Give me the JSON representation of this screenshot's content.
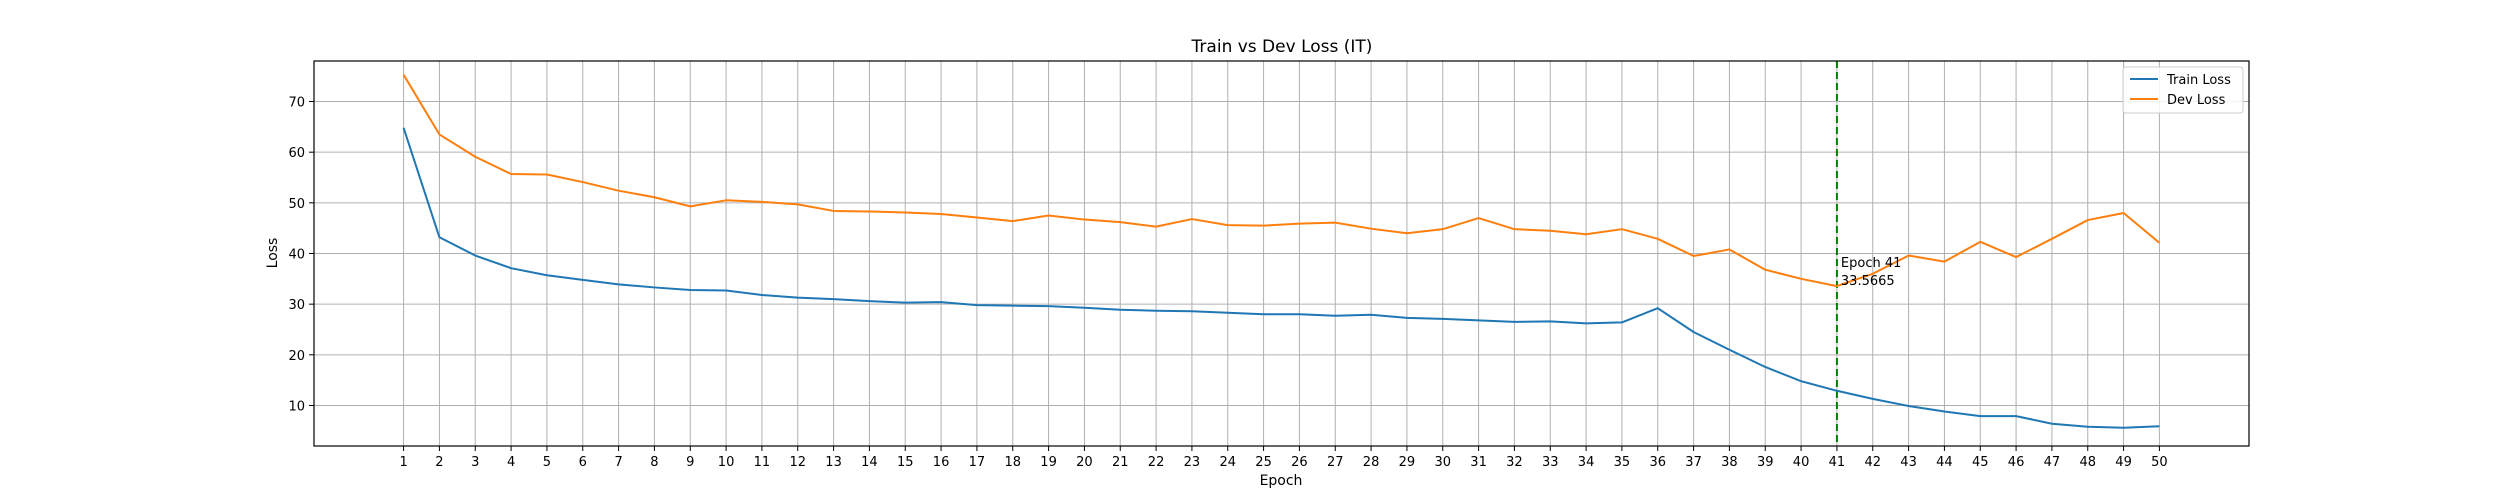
{
  "chart_data": {
    "type": "line",
    "title": "Train vs Dev Loss (IT)",
    "xlabel": "Epoch",
    "ylabel": "Loss",
    "xlim": [
      -1.5,
      52.5
    ],
    "ylim": [
      2.0,
      78.0
    ],
    "grid": true,
    "legend_position": "top-right",
    "x": [
      1,
      2,
      3,
      4,
      5,
      6,
      7,
      8,
      9,
      10,
      11,
      12,
      13,
      14,
      15,
      16,
      17,
      18,
      19,
      20,
      21,
      22,
      23,
      24,
      25,
      26,
      27,
      28,
      29,
      30,
      31,
      32,
      33,
      34,
      35,
      36,
      37,
      38,
      39,
      40,
      41,
      42,
      43,
      44,
      45,
      46,
      47,
      48,
      49,
      50
    ],
    "y_ticks": [
      10,
      20,
      30,
      40,
      50,
      60,
      70
    ],
    "series": [
      {
        "name": "Train Loss",
        "color": "#1f77b4",
        "values": [
          64.8,
          43.2,
          39.6,
          37.1,
          35.7,
          34.8,
          33.9,
          33.3,
          32.8,
          32.7,
          31.8,
          31.3,
          31.0,
          30.6,
          30.3,
          30.4,
          29.8,
          29.7,
          29.6,
          29.3,
          28.9,
          28.7,
          28.6,
          28.3,
          28.0,
          28.0,
          27.7,
          27.9,
          27.3,
          27.1,
          26.8,
          26.5,
          26.6,
          26.2,
          26.4,
          29.2,
          24.5,
          21.0,
          17.6,
          14.8,
          12.9,
          11.3,
          9.9,
          8.8,
          7.9,
          7.9,
          6.4,
          5.8,
          5.6,
          5.9
        ]
      },
      {
        "name": "Dev Loss",
        "color": "#ff7f0e",
        "values": [
          75.3,
          63.5,
          59.1,
          55.7,
          55.6,
          54.1,
          52.4,
          51.1,
          49.3,
          50.5,
          50.2,
          49.7,
          48.4,
          48.3,
          48.1,
          47.8,
          47.1,
          46.4,
          47.5,
          46.7,
          46.2,
          45.3,
          46.8,
          45.6,
          45.5,
          45.9,
          46.1,
          44.9,
          44.0,
          44.8,
          47.0,
          44.8,
          44.5,
          43.8,
          44.8,
          42.9,
          39.5,
          40.8,
          36.8,
          35.0,
          33.5665,
          36.0,
          39.6,
          38.4,
          42.3,
          39.3,
          42.9,
          46.6,
          48.0,
          42.1
        ]
      }
    ],
    "annotation": {
      "epoch": 41,
      "value": 33.5665,
      "line_color": "#008000",
      "label_line1": "Epoch 41",
      "label_line2": "33.5665"
    }
  }
}
